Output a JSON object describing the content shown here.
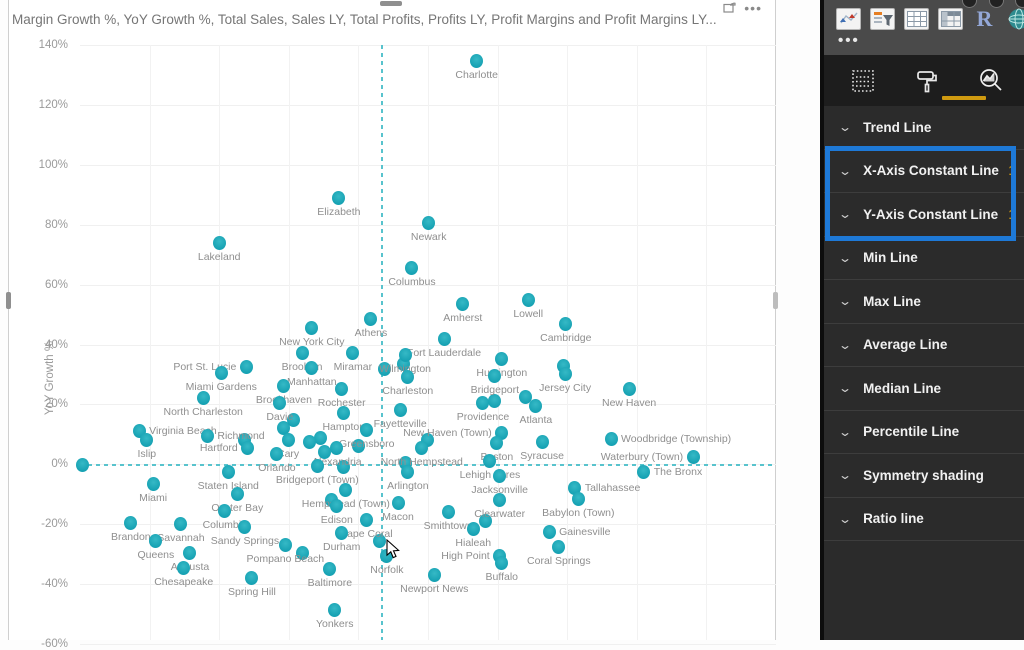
{
  "chart": {
    "title": "Margin Growth %, YoY Growth %, Total Sales, Sales LY, Total Profits, Profits LY, Profit Margins and Profit Margins LY...",
    "actions": [
      "focus-mode",
      "more-options"
    ]
  },
  "chart_data": {
    "type": "scatter",
    "title": "Margin Growth %, YoY Growth %, Total Sales, Sales LY, Total Profits, Profits LY, Profit Margins and Profit Margins LY...",
    "ylabel": "YoY Growth %",
    "ylim": [
      -60,
      140
    ],
    "y_ticks": [
      "140%",
      "120%",
      "100%",
      "80%",
      "60%",
      "40%",
      "20%",
      "0%",
      "-20%",
      "-40%",
      "-60%"
    ],
    "x_note": "x axis (Margin Growth %) is cropped out of view; x stored as % of plot width",
    "grid": true,
    "constant_lines": {
      "x_axis_constant_frac": 43.3,
      "y_axis_constant_value": 0
    },
    "points": [
      {
        "label": "Charlotte",
        "x": 57.0,
        "y": 134.5
      },
      {
        "label": "Elizabeth",
        "x": 37.2,
        "y": 89
      },
      {
        "label": "Newark",
        "x": 50.1,
        "y": 80.5
      },
      {
        "label": "Lakeland",
        "x": 20.0,
        "y": 74
      },
      {
        "label": "Columbus",
        "x": 47.7,
        "y": 65.5
      },
      {
        "label": "Lowell",
        "x": 64.4,
        "y": 55
      },
      {
        "label": "Amherst",
        "x": 55.0,
        "y": 53.5
      },
      {
        "label": "Cambridge",
        "x": 69.8,
        "y": 47
      },
      {
        "label": "Athens",
        "x": 41.8,
        "y": 48.5
      },
      {
        "label": "New York City",
        "x": 33.3,
        "y": 45.5
      },
      {
        "label": "Fort Lauderdale",
        "x": 52.3,
        "y": 42
      },
      {
        "label": "Port St. Lucie",
        "x": 23.9,
        "y": 32.5,
        "lp": "l"
      },
      {
        "label": "Brooklyn",
        "x": 31.9,
        "y": 37
      },
      {
        "label": "Miramar",
        "x": 39.2,
        "y": 37
      },
      {
        "label": "Wilmington",
        "x": 46.7,
        "y": 36.5
      },
      {
        "label": "Huntington",
        "x": 60.6,
        "y": 35
      },
      {
        "label": "Manhattan",
        "x": 33.3,
        "y": 32
      },
      {
        "label": "Miami Gardens",
        "x": 20.3,
        "y": 30.5
      },
      {
        "label": "Charleston",
        "x": 47.1,
        "y": 29
      },
      {
        "label": "Bridgeport",
        "x": 59.6,
        "y": 29.5
      },
      {
        "label": "Jersey City",
        "x": 69.7,
        "y": 30
      },
      {
        "label": "Brookhaven",
        "x": 29.3,
        "y": 26
      },
      {
        "label": "Rochester",
        "x": 37.6,
        "y": 25
      },
      {
        "label": "North Charleston",
        "x": 17.7,
        "y": 22
      },
      {
        "label": "New Haven",
        "x": 78.9,
        "y": 25
      },
      {
        "label": "Davie",
        "x": 28.7,
        "y": 20.5
      },
      {
        "label": "Providence",
        "x": 57.9,
        "y": 20.5
      },
      {
        "label": "Atlanta",
        "x": 65.5,
        "y": 19.5
      },
      {
        "label": "Fayetteville",
        "x": 46.0,
        "y": 18
      },
      {
        "label": "Hampton",
        "x": 37.9,
        "y": 17
      },
      {
        "label": "Virginia Beach",
        "x": 8.5,
        "y": 11,
        "lp": "r"
      },
      {
        "label": "Richmond",
        "x": 18.3,
        "y": 9.5,
        "lp": "r"
      },
      {
        "label": "Cary",
        "x": 29.9,
        "y": 8
      },
      {
        "label": "Greensboro",
        "x": 41.2,
        "y": 11.5
      },
      {
        "label": "New Haven (Town)",
        "x": 60.6,
        "y": 10.5,
        "lp": "l"
      },
      {
        "label": "Woodbridge (Township)",
        "x": 76.3,
        "y": 8.5,
        "lp": "r"
      },
      {
        "label": "Islip",
        "x": 9.6,
        "y": 8
      },
      {
        "label": "Hartford",
        "x": 24.1,
        "y": 5.5,
        "lp": "l"
      },
      {
        "label": "Orlando",
        "x": 28.3,
        "y": 3.5
      },
      {
        "label": "Alexandria",
        "x": 36.9,
        "y": 5.5
      },
      {
        "label": "North Hempstead",
        "x": 49.1,
        "y": 5.5
      },
      {
        "label": "Boston",
        "x": 59.9,
        "y": 7
      },
      {
        "label": "Syracuse",
        "x": 66.4,
        "y": 7.5
      },
      {
        "label": "Waterbury (Town)",
        "x": 88.1,
        "y": 2.5,
        "lp": "l"
      },
      {
        "label": "The Bronx",
        "x": 81.0,
        "y": -2.5,
        "lp": "r"
      },
      {
        "label": "Staten Island",
        "x": 21.3,
        "y": -2.5
      },
      {
        "label": "Bridgeport (Town)",
        "x": 34.1,
        "y": -0.5
      },
      {
        "label": "Arlington",
        "x": 47.1,
        "y": -2.5
      },
      {
        "label": "Lehigh Acres",
        "x": 58.9,
        "y": 1
      },
      {
        "label": "Jacksonville",
        "x": 60.3,
        "y": -4
      },
      {
        "label": "Tallahassee",
        "x": 71.1,
        "y": -8,
        "lp": "r"
      },
      {
        "label": "Miami",
        "x": 10.5,
        "y": -6.5
      },
      {
        "label": "Oyster Bay",
        "x": 22.6,
        "y": -10
      },
      {
        "label": "Hempstead (Town)",
        "x": 38.2,
        "y": -8.5
      },
      {
        "label": "Edison",
        "x": 36.9,
        "y": -14
      },
      {
        "label": "Macon",
        "x": 45.7,
        "y": -13
      },
      {
        "label": "Clearwater",
        "x": 60.3,
        "y": -12
      },
      {
        "label": "Babylon (Town)",
        "x": 71.6,
        "y": -11.5
      },
      {
        "label": "Smithtown",
        "x": 52.9,
        "y": -16
      },
      {
        "label": "Columbia",
        "x": 20.8,
        "y": -15.5
      },
      {
        "label": "Brandon",
        "x": 7.3,
        "y": -19.5
      },
      {
        "label": "Savannah",
        "x": 14.5,
        "y": -20
      },
      {
        "label": "Sandy Springs",
        "x": 23.7,
        "y": -21
      },
      {
        "label": "Cape Coral",
        "x": 41.1,
        "y": -18.5
      },
      {
        "label": "Durham",
        "x": 37.6,
        "y": -23
      },
      {
        "label": "Hialeah",
        "x": 56.5,
        "y": -21.5
      },
      {
        "label": "Gainesville",
        "x": 67.4,
        "y": -22.5,
        "lp": "r"
      },
      {
        "label": "Queens",
        "x": 10.9,
        "y": -25.5
      },
      {
        "label": "Pompano Beach",
        "x": 29.5,
        "y": -27
      },
      {
        "label": "Augusta",
        "x": 15.8,
        "y": -29.5
      },
      {
        "label": "High Point",
        "x": 60.3,
        "y": -30.5,
        "lp": "l"
      },
      {
        "label": "Coral Springs",
        "x": 68.8,
        "y": -27.5
      },
      {
        "label": "Norfolk",
        "x": 44.1,
        "y": -30.5
      },
      {
        "label": "Chesapeake",
        "x": 14.9,
        "y": -34.5
      },
      {
        "label": "Buffalo",
        "x": 60.6,
        "y": -33
      },
      {
        "label": "Baltimore",
        "x": 35.9,
        "y": -35
      },
      {
        "label": "Spring Hill",
        "x": 24.7,
        "y": -38
      },
      {
        "label": "Newport News",
        "x": 50.9,
        "y": -37
      },
      {
        "label": "Yonkers",
        "x": 36.6,
        "y": -48.5
      }
    ],
    "unlabeled_points": [
      [
        29.2,
        12
      ],
      [
        30.7,
        14.7
      ],
      [
        23.7,
        8
      ],
      [
        34.5,
        8.7
      ],
      [
        37.9,
        -1
      ],
      [
        49.9,
        8
      ],
      [
        46.7,
        0.3
      ],
      [
        43.7,
        31.7
      ],
      [
        46.5,
        33.5
      ],
      [
        69.4,
        32.7
      ],
      [
        58.3,
        -19
      ],
      [
        31.9,
        -29.7
      ],
      [
        0.4,
        -0.3
      ],
      [
        40.0,
        6
      ],
      [
        35.1,
        4
      ],
      [
        33.0,
        7.5
      ],
      [
        64.0,
        22.5
      ],
      [
        59.6,
        21.3
      ],
      [
        36.2,
        -12
      ],
      [
        43.0,
        -25.5
      ]
    ]
  },
  "panel": {
    "gallery_icons": [
      "scatter-chart-icon",
      "slicer-icon",
      "table-icon",
      "matrix-icon",
      "r-script-icon",
      "map-globe-icon"
    ],
    "more_visuals": "...",
    "tabs": [
      {
        "name": "fields-tab",
        "active": false
      },
      {
        "name": "format-tab",
        "active": false
      },
      {
        "name": "analytics-tab",
        "active": true
      }
    ],
    "items": [
      {
        "label": "Trend Line",
        "count": "",
        "highlight": false
      },
      {
        "label": "X-Axis Constant Line",
        "count": "1",
        "highlight": true
      },
      {
        "label": "Y-Axis Constant Line",
        "count": "1",
        "highlight": true
      },
      {
        "label": "Min Line",
        "count": "",
        "highlight": false
      },
      {
        "label": "Max Line",
        "count": "",
        "highlight": false
      },
      {
        "label": "Average Line",
        "count": "",
        "highlight": false
      },
      {
        "label": "Median Line",
        "count": "",
        "highlight": false
      },
      {
        "label": "Percentile Line",
        "count": "",
        "highlight": false
      },
      {
        "label": "Symmetry shading",
        "count": "",
        "highlight": false
      },
      {
        "label": "Ratio line",
        "count": "",
        "highlight": false
      }
    ]
  },
  "colors": {
    "point_teal": "#17a2b3",
    "dashed_teal": "#58c3cd",
    "highlight_blue": "#1e79d7",
    "count_gold": "#c08f12",
    "tab_underline_gold": "#cf9a10",
    "panel_bg": "#2b2b2b"
  }
}
